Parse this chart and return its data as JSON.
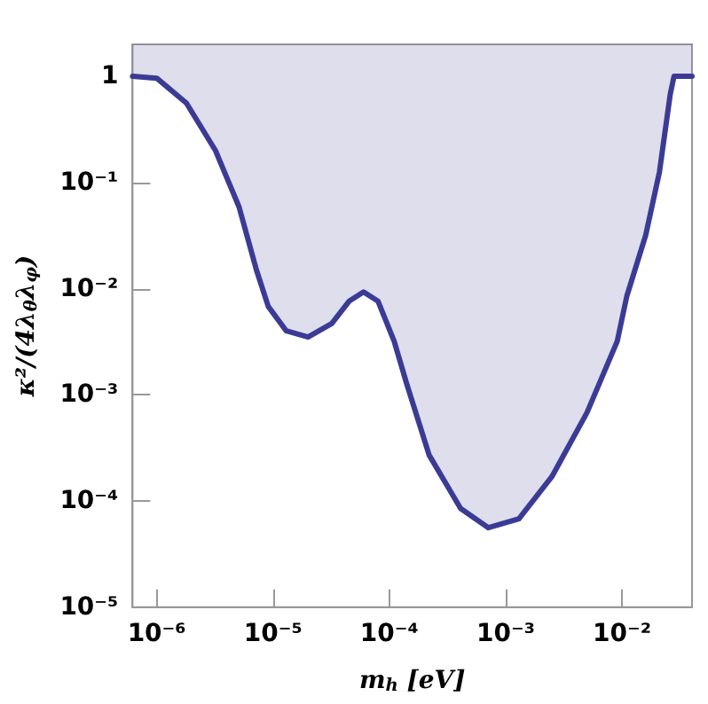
{
  "chart_data": {
    "type": "line",
    "xlabel": "m$_{h}$ [eV]",
    "ylabel": "κ²/(4λ$_{θ}$λ$_{φ}$)",
    "log": "xy",
    "xlim": [
      6.2e-07,
      0.04
    ],
    "ylim": [
      1e-05,
      2
    ],
    "xticks": [
      {
        "value": 1e-06,
        "label": "10⁻⁶"
      },
      {
        "value": 1e-05,
        "label": "10⁻⁵"
      },
      {
        "value": 0.0001,
        "label": "10⁻⁴"
      },
      {
        "value": 0.001,
        "label": "10⁻³"
      },
      {
        "value": 0.01,
        "label": "10⁻²"
      }
    ],
    "yticks": [
      {
        "value": 1e-05,
        "label": "10⁻⁵"
      },
      {
        "value": 0.0001,
        "label": "10⁻⁴"
      },
      {
        "value": 0.001,
        "label": "10⁻³"
      },
      {
        "value": 0.01,
        "label": "10⁻²"
      },
      {
        "value": 0.1,
        "label": "10⁻¹"
      },
      1
    ],
    "marker": "none",
    "line_style": "solid",
    "series": [
      {
        "color": "#3b3b96",
        "x": [
          6.2e-07,
          1e-06,
          1.8e-06,
          3.2e-06,
          5.1e-06,
          7.2e-06,
          9.1e-06,
          1.3e-05,
          2e-05,
          3.2e-05,
          4.5e-05,
          6e-05,
          8e-05,
          0.00011,
          0.00014,
          0.00022,
          0.00041,
          0.00071,
          0.0013,
          0.0025,
          0.005,
          0.0091,
          0.011,
          0.016,
          0.021,
          0.026,
          0.028,
          0.04
        ],
        "values": [
          1,
          0.96,
          0.56,
          0.2,
          0.059,
          0.015,
          0.0068,
          0.004,
          0.0035,
          0.0047,
          0.0076,
          0.0093,
          0.0076,
          0.0032,
          0.0013,
          0.00027,
          8.5e-05,
          5.6e-05,
          6.8e-05,
          0.00017,
          0.00068,
          0.0032,
          0.0085,
          0.032,
          0.126,
          0.68,
          1,
          1
        ],
        "lower": [
          1,
          0.96,
          0.56,
          0.2,
          0.059,
          0.015,
          0.0068,
          0.004,
          0.0035,
          0.0047,
          0.0076,
          0.0093,
          0.0076,
          0.0032,
          0.0013,
          0.00027,
          8.5e-05,
          5.6e-05,
          6.8e-05,
          0.00017,
          0.00068,
          0.0032,
          0.0085,
          0.032,
          0.126,
          0.68,
          1,
          1
        ],
        "upper": [
          2,
          2,
          2,
          2,
          2,
          2,
          2,
          2,
          2,
          2,
          2,
          2,
          2,
          2,
          2,
          2,
          2,
          2,
          2,
          2,
          2,
          2,
          2,
          2,
          2,
          2,
          2,
          2
        ]
      }
    ]
  }
}
